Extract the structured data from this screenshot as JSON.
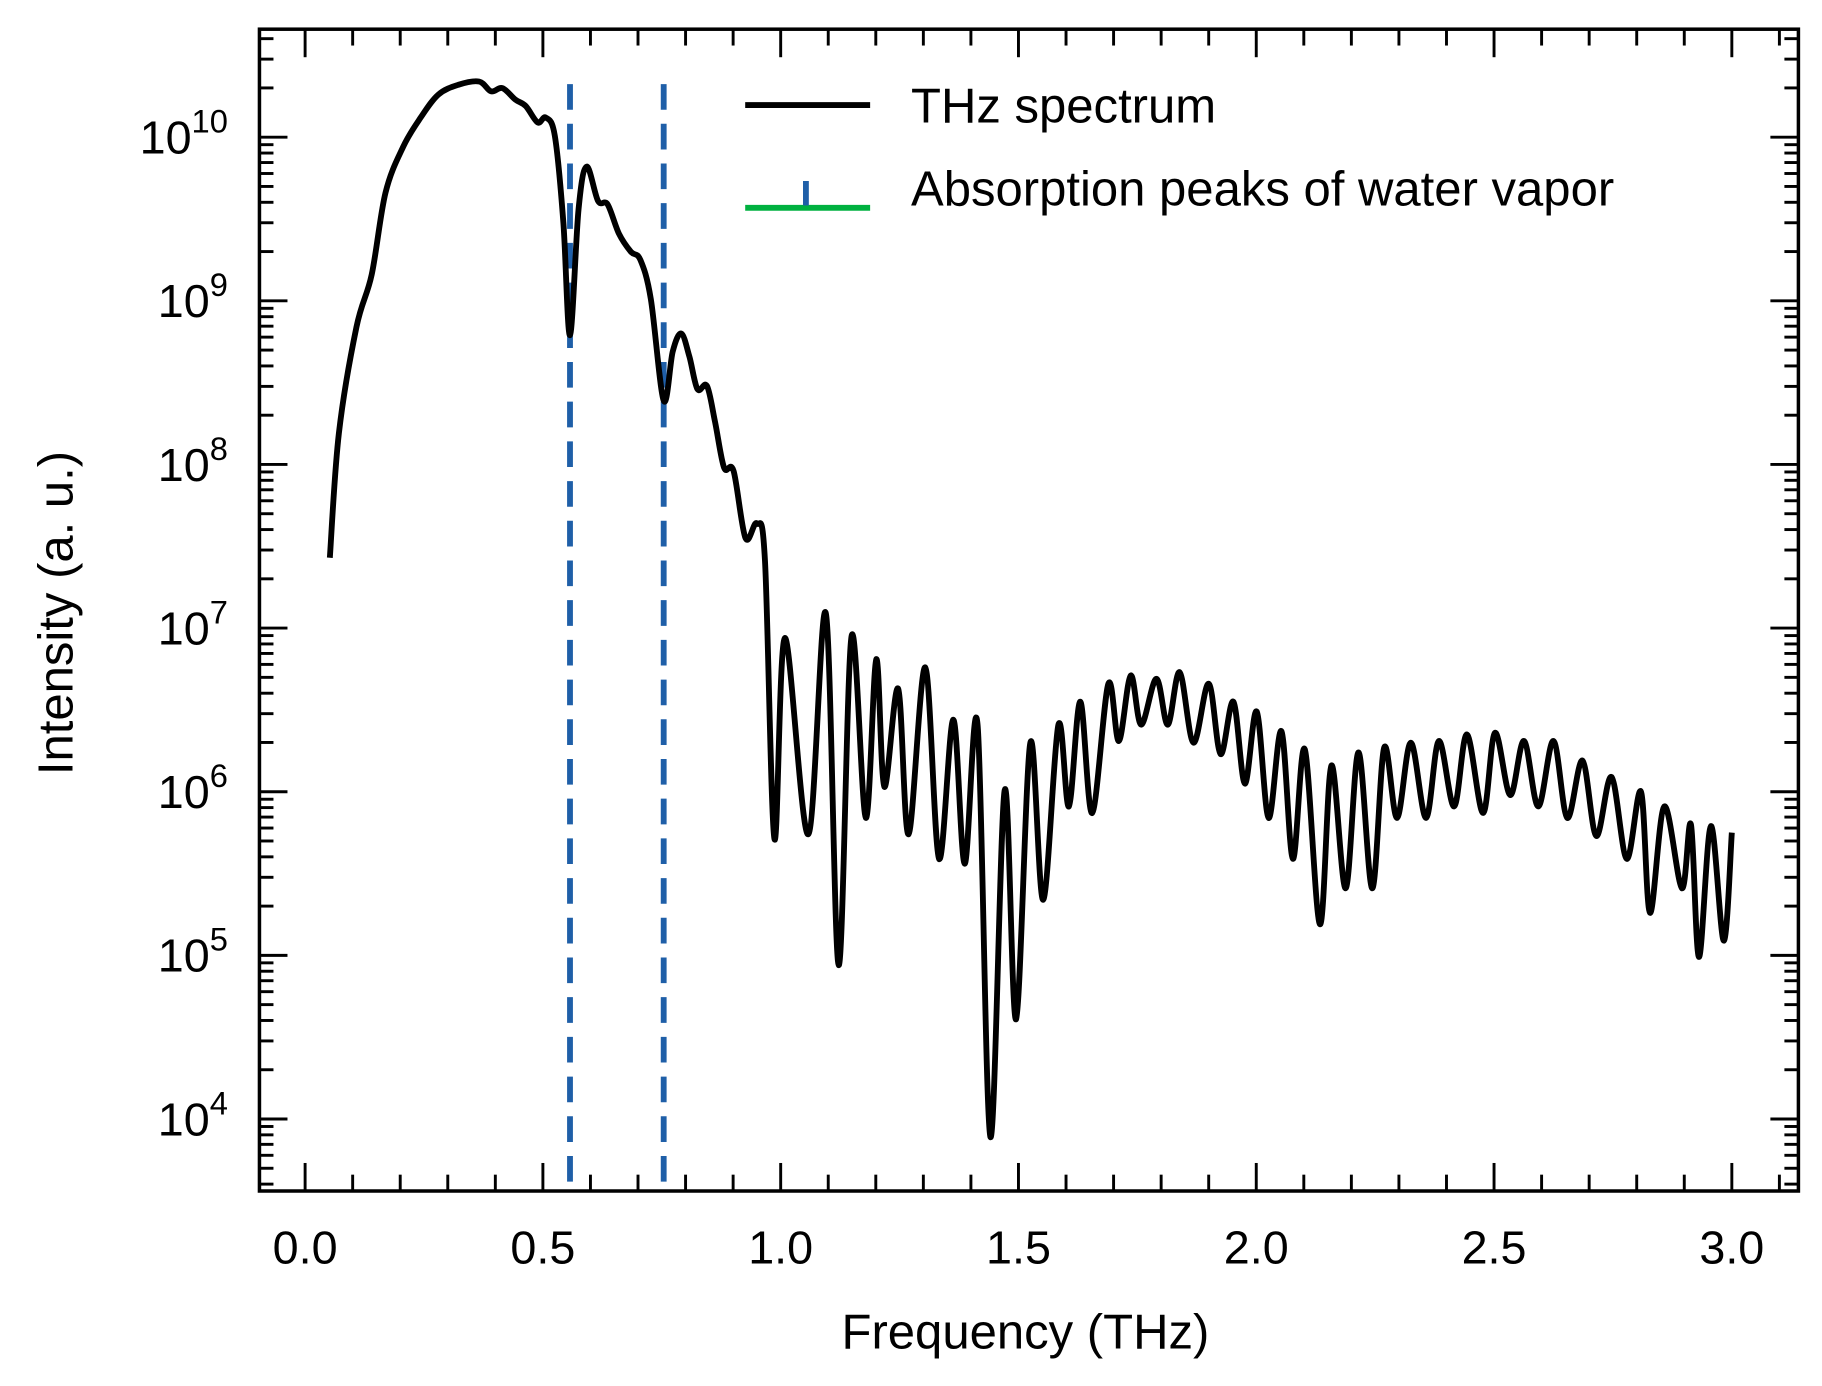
{
  "chart_data": {
    "type": "line",
    "title": "",
    "xlabel": "Frequency (THz)",
    "ylabel": "Intensity (a. u.)",
    "xscale": "linear",
    "yscale": "log",
    "xlim": [
      -0.096,
      3.14
    ],
    "ylim_log10": [
      3.56,
      10.66
    ],
    "xticks": [
      0.0,
      0.5,
      1.0,
      1.5,
      2.0,
      2.5,
      3.0
    ],
    "xtick_labels": [
      "0.0",
      "0.5",
      "1.0",
      "1.5",
      "2.0",
      "2.5",
      "3.0"
    ],
    "yticks_log10": [
      4,
      5,
      6,
      7,
      8,
      9,
      10
    ],
    "ytick_base": "10",
    "ytick_exponents": [
      "4",
      "5",
      "6",
      "7",
      "8",
      "9",
      "10"
    ],
    "grid": false,
    "legend_position": "top-right",
    "legend": [
      "THz spectrum",
      "Absorption peaks of water vapor"
    ],
    "colors": {
      "spectrum": "#000000",
      "water_lines": "#1f5fa8",
      "legend_green": "#00b140"
    },
    "water_vapor_lines_thz": [
      0.557,
      0.754
    ],
    "series": [
      {
        "name": "THz spectrum",
        "x_thz": [
          0.052,
          0.071,
          0.108,
          0.14,
          0.169,
          0.206,
          0.243,
          0.28,
          0.322,
          0.366,
          0.391,
          0.415,
          0.442,
          0.464,
          0.489,
          0.506,
          0.525,
          0.543,
          0.557,
          0.575,
          0.592,
          0.616,
          0.636,
          0.66,
          0.685,
          0.705,
          0.727,
          0.754,
          0.773,
          0.791,
          0.808,
          0.825,
          0.845,
          0.862,
          0.881,
          0.901,
          0.926,
          0.95,
          0.967,
          0.987,
          1.009,
          1.058,
          1.095,
          1.122,
          1.149,
          1.179,
          1.201,
          1.218,
          1.247,
          1.269,
          1.304,
          1.333,
          1.363,
          1.387,
          1.414,
          1.441,
          1.471,
          1.495,
          1.525,
          1.552,
          1.584,
          1.606,
          1.63,
          1.655,
          1.689,
          1.711,
          1.736,
          1.758,
          1.79,
          1.814,
          1.839,
          1.868,
          1.9,
          1.925,
          1.952,
          1.976,
          2.001,
          2.026,
          2.053,
          2.077,
          2.102,
          2.134,
          2.158,
          2.188,
          2.215,
          2.244,
          2.269,
          2.296,
          2.325,
          2.357,
          2.384,
          2.416,
          2.443,
          2.477,
          2.502,
          2.534,
          2.563,
          2.593,
          2.625,
          2.654,
          2.686,
          2.715,
          2.747,
          2.779,
          2.809,
          2.828,
          2.858,
          2.895,
          2.914,
          2.931,
          2.956,
          2.983,
          3.0
        ],
        "log10_intensity": [
          7.43,
          8.19,
          8.84,
          9.16,
          9.66,
          9.94,
          10.12,
          10.26,
          10.32,
          10.34,
          10.28,
          10.3,
          10.23,
          10.19,
          10.09,
          10.12,
          10.01,
          9.48,
          8.79,
          9.56,
          9.82,
          9.61,
          9.59,
          9.41,
          9.3,
          9.25,
          9.01,
          8.39,
          8.69,
          8.8,
          8.66,
          8.46,
          8.48,
          8.26,
          7.98,
          7.96,
          7.55,
          7.64,
          7.41,
          5.71,
          6.94,
          5.74,
          7.09,
          4.94,
          6.95,
          5.84,
          6.81,
          6.03,
          6.63,
          5.74,
          6.76,
          5.59,
          6.44,
          5.56,
          6.41,
          3.89,
          6.01,
          4.61,
          6.3,
          5.34,
          6.41,
          5.91,
          6.55,
          5.87,
          6.66,
          6.31,
          6.71,
          6.41,
          6.69,
          6.41,
          6.73,
          6.3,
          6.66,
          6.23,
          6.55,
          6.05,
          6.49,
          5.84,
          6.37,
          5.59,
          6.26,
          5.19,
          6.16,
          5.41,
          6.24,
          5.41,
          6.27,
          5.84,
          6.3,
          5.84,
          6.31,
          5.91,
          6.35,
          5.87,
          6.36,
          5.98,
          6.31,
          5.91,
          6.31,
          5.84,
          6.19,
          5.73,
          6.09,
          5.59,
          6.0,
          5.26,
          5.91,
          5.41,
          5.8,
          4.99,
          5.79,
          5.09,
          5.75
        ]
      }
    ]
  }
}
